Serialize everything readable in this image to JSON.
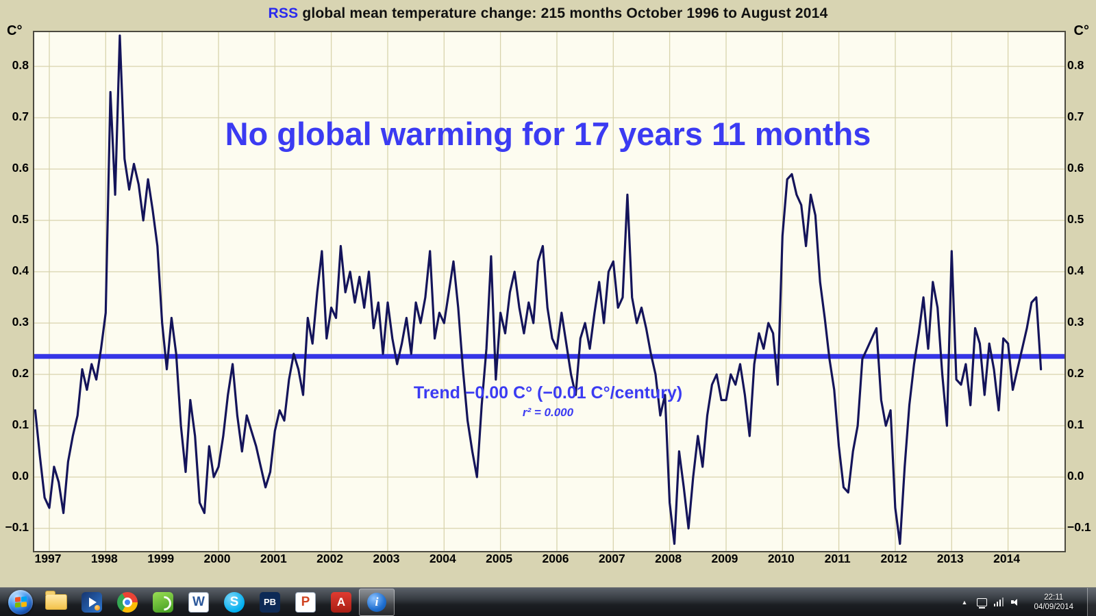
{
  "page": {
    "title_prefix": "RSS",
    "title_rest": " global mean temperature change: 215 months October 1996 to August 2014",
    "source_url": "www.remss.com/data/msu/monthly_time_series/RSS_Monthly_MSU_AMSU_Channel_TLT_Anomalies_Land_and_Ocean_v03_3.txt",
    "headline": "No global warming for 17 years 11 months",
    "trend_label": "Trend −0.00 C° (−0.01 C°/century)",
    "r2_label": "r² = 0.000",
    "axis_unit_left": "C°",
    "axis_unit_right": "C°"
  },
  "chart_data": {
    "type": "line",
    "title": "RSS global mean temperature change: 215 months October 1996 to August 2014",
    "series_name": "RSS monthly global mean temperature anomaly (C°)",
    "start_month": "1996-10",
    "end_month": "2014-08",
    "n_months": 215,
    "ylim": [
      -0.145,
      0.867
    ],
    "y_ticks": [
      0.8,
      0.7,
      0.6,
      0.5,
      0.4,
      0.3,
      0.2,
      0.1,
      0.0,
      -0.1
    ],
    "x_ticks": [
      1997,
      1998,
      1999,
      2000,
      2001,
      2002,
      2003,
      2004,
      2005,
      2006,
      2007,
      2008,
      2009,
      2010,
      2011,
      2012,
      2013,
      2014
    ],
    "grid": true,
    "trend": {
      "value": 0.235,
      "slope_per_century": -0.01,
      "r2": 0.0
    },
    "values": [
      0.13,
      0.04,
      -0.04,
      -0.06,
      0.02,
      -0.01,
      -0.07,
      0.03,
      0.08,
      0.12,
      0.21,
      0.17,
      0.22,
      0.19,
      0.25,
      0.32,
      0.75,
      0.55,
      0.86,
      0.62,
      0.56,
      0.61,
      0.57,
      0.5,
      0.58,
      0.52,
      0.45,
      0.3,
      0.21,
      0.31,
      0.24,
      0.1,
      0.01,
      0.15,
      0.08,
      -0.05,
      -0.07,
      0.06,
      0.0,
      0.02,
      0.08,
      0.16,
      0.22,
      0.12,
      0.05,
      0.12,
      0.09,
      0.06,
      0.02,
      -0.02,
      0.01,
      0.09,
      0.13,
      0.11,
      0.19,
      0.24,
      0.21,
      0.16,
      0.31,
      0.26,
      0.36,
      0.44,
      0.27,
      0.33,
      0.31,
      0.45,
      0.36,
      0.4,
      0.34,
      0.39,
      0.33,
      0.4,
      0.29,
      0.34,
      0.24,
      0.34,
      0.27,
      0.22,
      0.26,
      0.31,
      0.24,
      0.34,
      0.3,
      0.35,
      0.44,
      0.27,
      0.32,
      0.3,
      0.36,
      0.42,
      0.33,
      0.21,
      0.11,
      0.05,
      0.0,
      0.14,
      0.25,
      0.43,
      0.19,
      0.32,
      0.28,
      0.36,
      0.4,
      0.33,
      0.28,
      0.34,
      0.3,
      0.42,
      0.45,
      0.33,
      0.27,
      0.25,
      0.32,
      0.26,
      0.2,
      0.16,
      0.27,
      0.3,
      0.25,
      0.32,
      0.38,
      0.3,
      0.4,
      0.42,
      0.33,
      0.35,
      0.55,
      0.35,
      0.3,
      0.33,
      0.29,
      0.24,
      0.2,
      0.12,
      0.16,
      -0.05,
      -0.13,
      0.05,
      -0.02,
      -0.1,
      0.0,
      0.08,
      0.02,
      0.12,
      0.18,
      0.2,
      0.15,
      0.15,
      0.2,
      0.18,
      0.22,
      0.16,
      0.08,
      0.22,
      0.28,
      0.25,
      0.3,
      0.28,
      0.18,
      0.47,
      0.58,
      0.59,
      0.55,
      0.53,
      0.45,
      0.55,
      0.51,
      0.38,
      0.31,
      0.23,
      0.17,
      0.06,
      -0.02,
      -0.03,
      0.05,
      0.1,
      0.23,
      0.25,
      0.27,
      0.29,
      0.15,
      0.1,
      0.13,
      -0.06,
      -0.13,
      0.02,
      0.14,
      0.22,
      0.28,
      0.35,
      0.25,
      0.38,
      0.33,
      0.2,
      0.1,
      0.44,
      0.19,
      0.18,
      0.22,
      0.14,
      0.29,
      0.26,
      0.16,
      0.26,
      0.21,
      0.13,
      0.27,
      0.26,
      0.17,
      0.21,
      0.25,
      0.29,
      0.34,
      0.35,
      0.21
    ],
    "colors": {
      "line": "#14145a",
      "trend": "#3535e6",
      "grid": "#d8d3ac",
      "plot_bg": "#fdfcf0",
      "frame": "#4c4a40",
      "accent_blue": "#3b3bf2",
      "background": "#d8d4b2"
    }
  },
  "taskbar": {
    "app_letters": {
      "word": "W",
      "skype": "S",
      "pb": "PB",
      "powerpoint": "P",
      "adobe": "A",
      "info": "i"
    },
    "hidden_icons_arrow": "▲",
    "clock": {
      "time": "22:11",
      "date": "04/09/2014"
    }
  }
}
